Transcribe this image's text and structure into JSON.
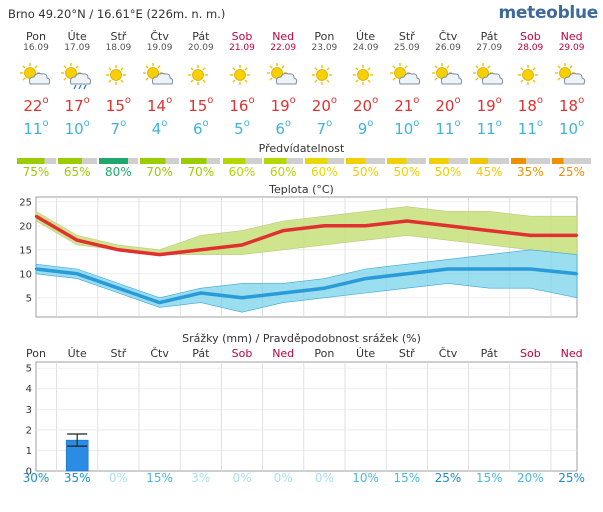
{
  "header": {
    "location": "Brno  49.20°N / 16.61°E (226m. n. m.)",
    "brand": "meteoblue"
  },
  "days": [
    {
      "name": "Pon",
      "date": "16.09",
      "weekend": false,
      "icon": "sun-cloud-icon",
      "tmax": "22",
      "tmin": "11",
      "pred": "75%",
      "pred_color": "#9acd00",
      "precip_pct": "30%"
    },
    {
      "name": "Úte",
      "date": "17.09",
      "weekend": false,
      "icon": "sun-cloud-rain-icon",
      "tmax": "17",
      "tmin": "10",
      "pred": "65%",
      "pred_color": "#9acd00",
      "precip_pct": "35%"
    },
    {
      "name": "Stř",
      "date": "18.09",
      "weekend": false,
      "icon": "sun-icon",
      "tmax": "15",
      "tmin": "7",
      "pred": "80%",
      "pred_color": "#1ea86e",
      "precip_pct": "0%"
    },
    {
      "name": "Čtv",
      "date": "19.09",
      "weekend": false,
      "icon": "sun-cloud-icon",
      "tmax": "14",
      "tmin": "4",
      "pred": "70%",
      "pred_color": "#9acd00",
      "precip_pct": "15%"
    },
    {
      "name": "Pát",
      "date": "20.09",
      "weekend": false,
      "icon": "sun-icon",
      "tmax": "15",
      "tmin": "6",
      "pred": "70%",
      "pred_color": "#9acd00",
      "precip_pct": "3%"
    },
    {
      "name": "Sob",
      "date": "21.09",
      "weekend": true,
      "icon": "sun-icon",
      "tmax": "16",
      "tmin": "5",
      "pred": "60%",
      "pred_color": "#b5d700",
      "precip_pct": "0%"
    },
    {
      "name": "Ned",
      "date": "22.09",
      "weekend": true,
      "icon": "sun-cloud-icon",
      "tmax": "19",
      "tmin": "6",
      "pred": "60%",
      "pred_color": "#b5d700",
      "precip_pct": "0%"
    },
    {
      "name": "Pon",
      "date": "23.09",
      "weekend": false,
      "icon": "sun-icon",
      "tmax": "20",
      "tmin": "7",
      "pred": "60%",
      "pred_color": "#e6d800",
      "precip_pct": "0%"
    },
    {
      "name": "Úte",
      "date": "24.09",
      "weekend": false,
      "icon": "sun-icon",
      "tmax": "20",
      "tmin": "9",
      "pred": "50%",
      "pred_color": "#f0d000",
      "precip_pct": "10%"
    },
    {
      "name": "Stř",
      "date": "25.09",
      "weekend": false,
      "icon": "sun-cloud-icon",
      "tmax": "21",
      "tmin": "10",
      "pred": "50%",
      "pred_color": "#f0d000",
      "precip_pct": "15%"
    },
    {
      "name": "Čtv",
      "date": "26.09",
      "weekend": false,
      "icon": "sun-cloud-icon",
      "tmax": "20",
      "tmin": "11",
      "pred": "50%",
      "pred_color": "#f0d000",
      "precip_pct": "25%"
    },
    {
      "name": "Pát",
      "date": "27.09",
      "weekend": false,
      "icon": "sun-cloud-icon",
      "tmax": "19",
      "tmin": "11",
      "pred": "45%",
      "pred_color": "#f0c800",
      "precip_pct": "15%"
    },
    {
      "name": "Sob",
      "date": "28.09",
      "weekend": true,
      "icon": "sun-icon",
      "tmax": "18",
      "tmin": "11",
      "pred": "35%",
      "pred_color": "#f09000",
      "precip_pct": "20%"
    },
    {
      "name": "Ned",
      "date": "29.09",
      "weekend": true,
      "icon": "sun-cloud-icon",
      "tmax": "18",
      "tmin": "10",
      "pred": "25%",
      "pred_color": "#f09000",
      "precip_pct": "25%"
    }
  ],
  "labels": {
    "predictability": "Předvídatelnost",
    "temperature": "Teplota (°C)",
    "precip": "Srážky (mm) / Pravděpodobnost srážek (%)"
  },
  "colors": {
    "tmax": "#e03030",
    "tmin": "#3fb3dc",
    "tmax_band": "#c6e07a",
    "tmin_band": "#6fd0ea",
    "precip_bar": "#2a8de3",
    "weekend": "#c0003c",
    "brand": "#3d6a9b"
  },
  "chart_data": [
    {
      "type": "line",
      "x": [
        "16.09",
        "17.09",
        "18.09",
        "19.09",
        "20.09",
        "21.09",
        "22.09",
        "23.09",
        "24.09",
        "25.09",
        "26.09",
        "27.09",
        "28.09",
        "29.09"
      ],
      "title": "Teplota (°C)",
      "yticks": [
        "5",
        "10",
        "15",
        "20",
        "25"
      ],
      "ylim": [
        1,
        26
      ],
      "series": [
        {
          "values": [
            22,
            17,
            15,
            14,
            15,
            16,
            19,
            20,
            20,
            21,
            20,
            19,
            18,
            18
          ],
          "band_low": [
            21,
            16,
            15,
            14,
            14,
            14,
            15,
            16,
            17,
            18,
            17,
            16,
            15,
            14
          ],
          "band_high": [
            23,
            18,
            16,
            15,
            18,
            19,
            21,
            22,
            23,
            24,
            23,
            23,
            22,
            22
          ]
        },
        {
          "values": [
            11,
            10,
            7,
            4,
            6,
            5,
            6,
            7,
            9,
            10,
            11,
            11,
            11,
            10
          ],
          "band_low": [
            10,
            9,
            6,
            3,
            4,
            2,
            4,
            5,
            6,
            7,
            8,
            7,
            7,
            5
          ],
          "band_high": [
            12,
            11,
            8,
            5,
            7,
            8,
            8,
            9,
            11,
            12,
            13,
            14,
            15,
            14
          ]
        }
      ]
    },
    {
      "type": "bar",
      "title": "Srážky (mm) / Pravděpodobnost srážek (%)",
      "categories": [
        "Pon",
        "Úte",
        "Stř",
        "Čtv",
        "Pát",
        "Sob",
        "Ned",
        "Pon",
        "Úte",
        "Stř",
        "Čtv",
        "Pát",
        "Sob",
        "Ned"
      ],
      "yticks": [
        "0",
        "1",
        "2",
        "3",
        "4",
        "5"
      ],
      "ylim": [
        0,
        5.3
      ],
      "values": [
        0,
        1.5,
        0,
        0,
        0,
        0,
        0,
        0,
        0,
        0,
        0,
        0,
        0,
        0
      ],
      "error_high": [
        0,
        1.8,
        0,
        0,
        0,
        0,
        0,
        0,
        0,
        0,
        0,
        0,
        0,
        0
      ],
      "probabilities": [
        "30%",
        "35%",
        "0%",
        "15%",
        "3%",
        "0%",
        "0%",
        "0%",
        "10%",
        "15%",
        "25%",
        "15%",
        "20%",
        "25%"
      ]
    }
  ]
}
